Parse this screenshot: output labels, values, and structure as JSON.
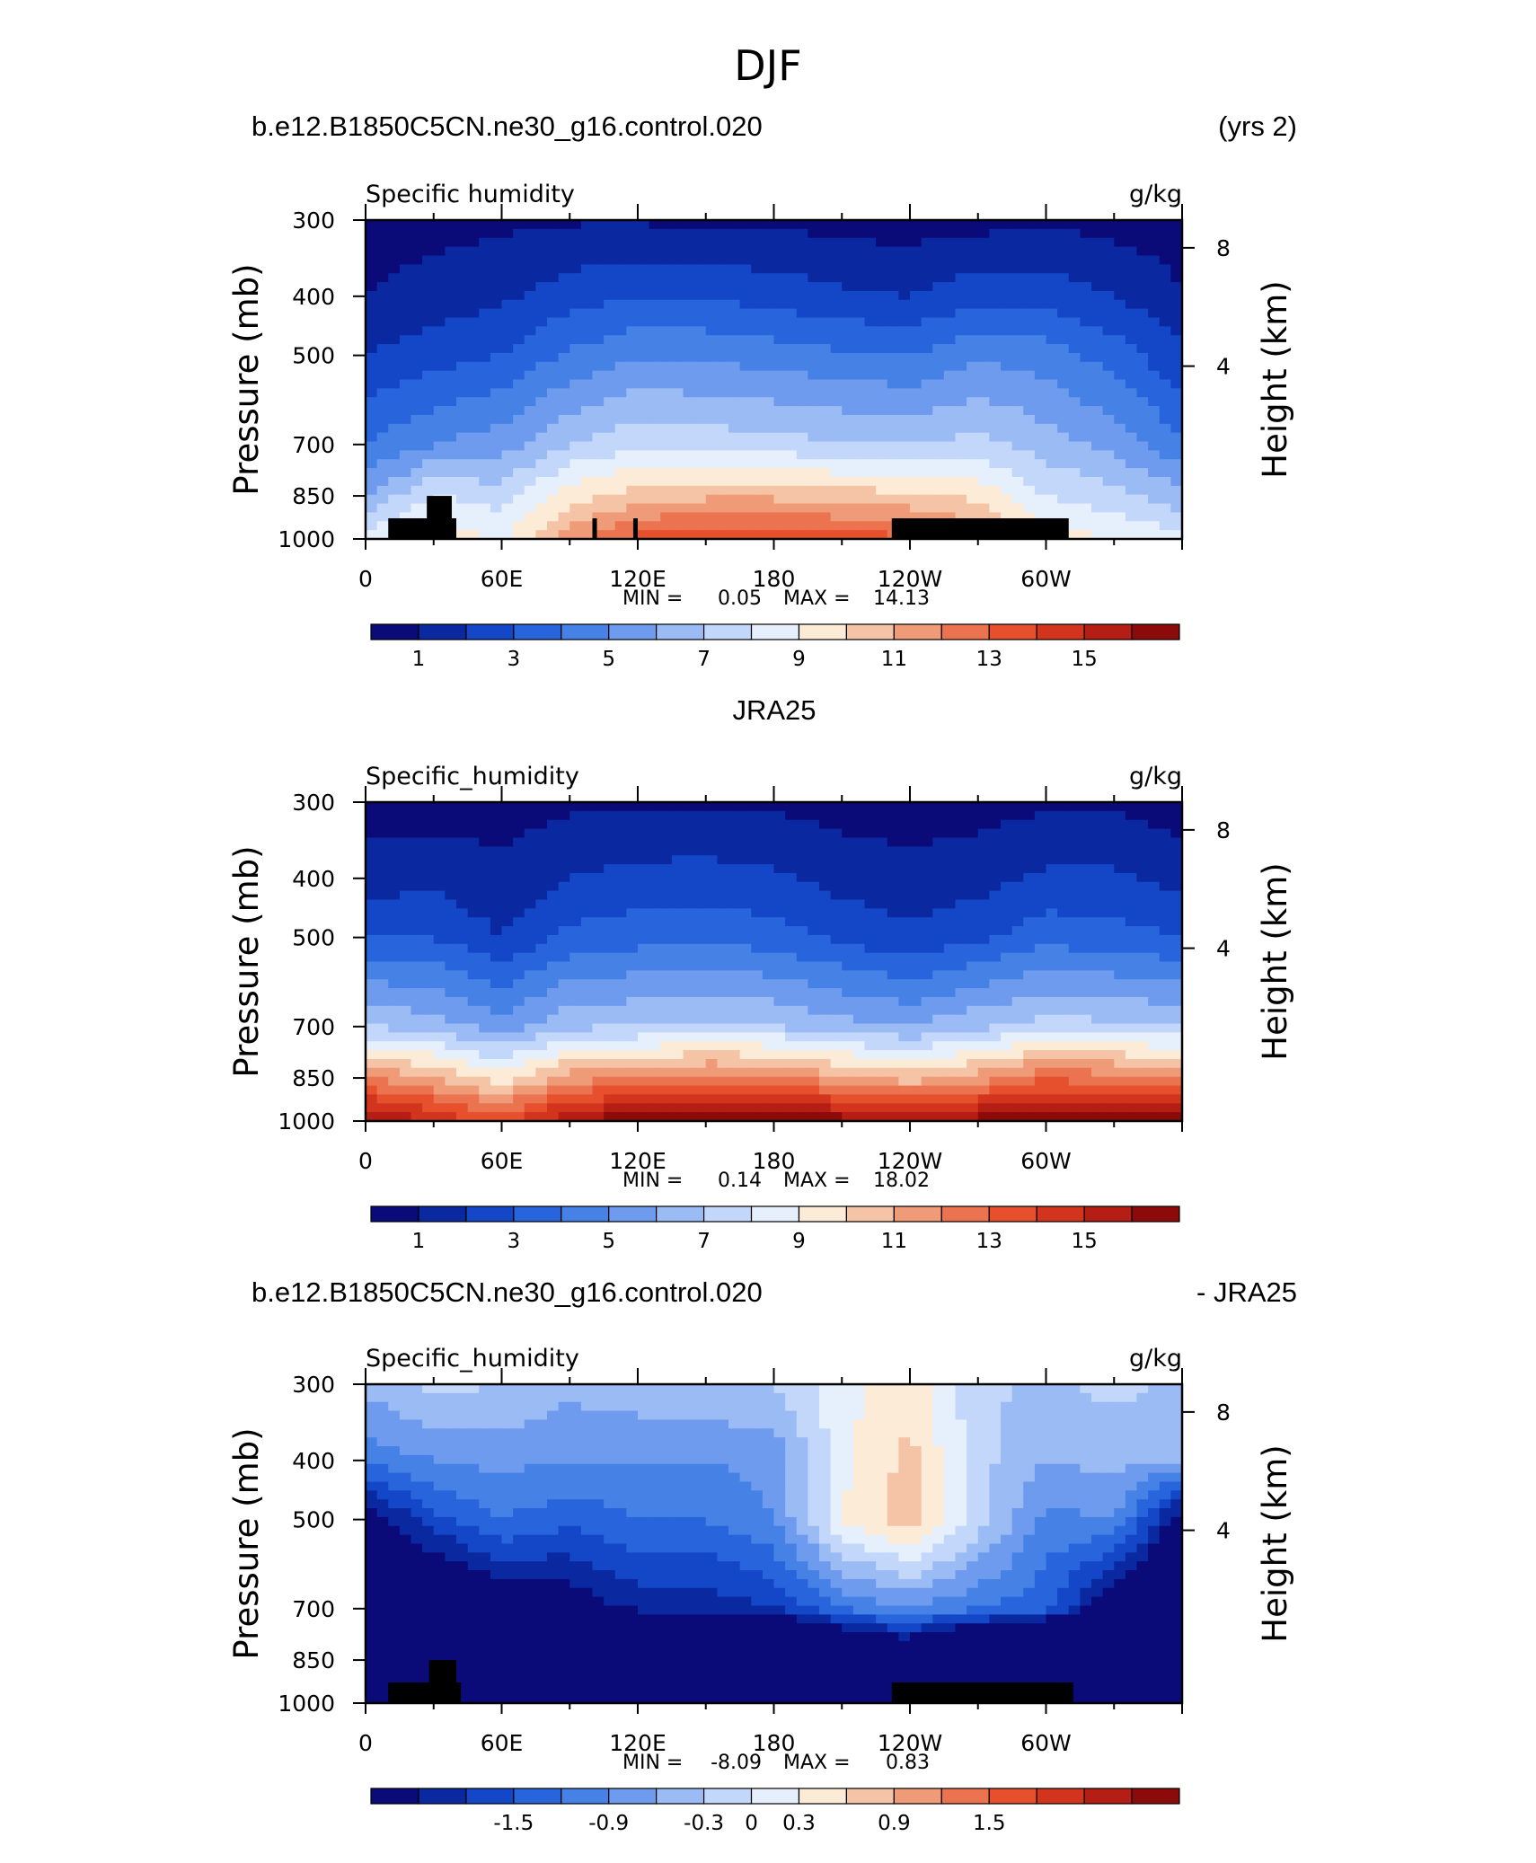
{
  "figure": {
    "title": "DJF"
  },
  "chart_data": [
    {
      "type": "heatmap",
      "header_left": "b.e12.B1850C5CN.ne30_g16.control.020",
      "header_right": "(yrs 2)",
      "subtitle_left": "Specific humidity",
      "subtitle_right": "g/kg",
      "ylabel": "Pressure (mb)",
      "ylabel_right": "Height (km)",
      "yticks": [
        "300",
        "400",
        "500",
        "700",
        "850",
        "1000"
      ],
      "yticks_right": [
        "8",
        "4"
      ],
      "xticks": [
        "0",
        "60E",
        "120E",
        "180",
        "120W",
        "60W"
      ],
      "x": [
        0,
        30,
        60,
        90,
        120,
        150,
        180,
        210,
        240,
        270,
        300,
        330,
        360
      ],
      "pressure_levels": [
        300,
        400,
        500,
        700,
        850,
        1000
      ],
      "min_label": "MIN =",
      "min_value": "0.05",
      "max_label": "MAX =",
      "max_value": "14.13",
      "contour_levels": [
        0,
        1,
        2,
        3,
        4,
        5,
        6,
        7,
        8,
        9,
        10,
        11,
        12,
        13,
        14,
        15,
        16
      ],
      "colorbar_labels": [
        "1",
        "3",
        "5",
        "7",
        "9",
        "11",
        "13",
        "15"
      ],
      "values_approx": [
        [
          0.4,
          0.6,
          0.8,
          0.9,
          0.9,
          0.8,
          0.8,
          0.6,
          0.5,
          0.6,
          0.8,
          0.6,
          0.4
        ],
        [
          1.0,
          1.5,
          1.8,
          2.5,
          3.0,
          2.9,
          2.6,
          2.2,
          2.0,
          2.7,
          2.6,
          2.0,
          1.1
        ],
        [
          2.0,
          2.5,
          3.0,
          4.2,
          4.8,
          4.8,
          4.5,
          4.2,
          4.0,
          4.8,
          4.5,
          3.5,
          2.2
        ],
        [
          4.0,
          5.0,
          5.5,
          7.0,
          7.8,
          7.6,
          7.4,
          7.1,
          6.9,
          7.4,
          6.5,
          5.6,
          4.2
        ],
        [
          6.0,
          8.0,
          7.5,
          9.5,
          10.5,
          10.8,
          10.8,
          10.5,
          10.2,
          9.8,
          8.0,
          7.4,
          6.3
        ],
        [
          8.5,
          10.0,
          8.8,
          11.5,
          13.3,
          13.8,
          13.6,
          13.5,
          13.2,
          11.5,
          9.5,
          9.0,
          8.5
        ]
      ],
      "land_mask": [
        {
          "lon": [
            10,
            40
          ],
          "p": [
            925,
            1000
          ]
        },
        {
          "lon": [
            27,
            38
          ],
          "p": [
            850,
            1000
          ]
        },
        {
          "lon": [
            100,
            102
          ],
          "p": [
            925,
            1000
          ]
        },
        {
          "lon": [
            118,
            120
          ],
          "p": [
            925,
            1000
          ]
        },
        {
          "lon": [
            232,
            310
          ],
          "p": [
            925,
            1000
          ]
        }
      ]
    },
    {
      "type": "heatmap",
      "header_center": "JRA25",
      "subtitle_left": "Specific_humidity",
      "subtitle_right": "g/kg",
      "ylabel": "Pressure (mb)",
      "ylabel_right": "Height (km)",
      "yticks": [
        "300",
        "400",
        "500",
        "700",
        "850",
        "1000"
      ],
      "yticks_right": [
        "8",
        "4"
      ],
      "xticks": [
        "0",
        "60E",
        "120E",
        "180",
        "120W",
        "60W"
      ],
      "x": [
        0,
        30,
        60,
        90,
        120,
        150,
        180,
        210,
        240,
        270,
        300,
        330,
        360
      ],
      "pressure_levels": [
        300,
        400,
        500,
        700,
        850,
        1000
      ],
      "min_label": "MIN =",
      "min_value": "0.14",
      "max_label": "MAX =",
      "max_value": "18.02",
      "contour_levels": [
        0,
        1,
        2,
        3,
        4,
        5,
        6,
        7,
        8,
        9,
        10,
        11,
        12,
        13,
        14,
        15,
        16
      ],
      "colorbar_labels": [
        "1",
        "3",
        "5",
        "7",
        "9",
        "11",
        "13",
        "15"
      ],
      "values_approx": [
        [
          0.5,
          0.5,
          0.6,
          0.8,
          0.9,
          0.9,
          0.8,
          0.6,
          0.5,
          0.6,
          0.8,
          0.8,
          0.5
        ],
        [
          1.5,
          1.7,
          1.2,
          2.0,
          2.3,
          2.4,
          2.2,
          1.6,
          1.3,
          1.6,
          2.2,
          2.2,
          1.6
        ],
        [
          3.0,
          3.0,
          2.0,
          3.3,
          3.6,
          3.8,
          3.4,
          2.8,
          2.2,
          2.8,
          3.6,
          3.4,
          3.0
        ],
        [
          7.0,
          6.5,
          5.5,
          6.8,
          7.0,
          7.3,
          7.0,
          6.4,
          6.0,
          6.8,
          7.5,
          7.2,
          7.0
        ],
        [
          12.0,
          11.0,
          9.5,
          11.5,
          12.0,
          12.5,
          12.3,
          11.3,
          10.5,
          11.5,
          12.8,
          12.5,
          12.0
        ],
        [
          16.5,
          15.0,
          13.5,
          16.0,
          17.0,
          17.5,
          17.2,
          16.5,
          16.0,
          16.5,
          17.0,
          16.8,
          16.5
        ]
      ]
    },
    {
      "type": "heatmap",
      "header_left": "b.e12.B1850C5CN.ne30_g16.control.020",
      "header_right": "- JRA25",
      "subtitle_left": "Specific_humidity",
      "subtitle_right": "g/kg",
      "ylabel": "Pressure (mb)",
      "ylabel_right": "Height (km)",
      "yticks": [
        "300",
        "400",
        "500",
        "700",
        "850",
        "1000"
      ],
      "yticks_right": [
        "8",
        "4"
      ],
      "xticks": [
        "0",
        "60E",
        "120E",
        "180",
        "120W",
        "60W"
      ],
      "x": [
        0,
        30,
        60,
        90,
        120,
        150,
        180,
        210,
        240,
        270,
        300,
        330,
        360
      ],
      "pressure_levels": [
        300,
        400,
        500,
        700,
        850,
        1000
      ],
      "min_label": "MIN =",
      "min_value": "-8.09",
      "max_label": "MAX =",
      "max_value": "0.83",
      "contour_levels": [
        -2.4,
        -2.1,
        -1.8,
        -1.5,
        -1.2,
        -0.9,
        -0.6,
        -0.3,
        0,
        0.3,
        0.6,
        0.9,
        1.2,
        1.5,
        1.8,
        2.1,
        2.4
      ],
      "colorbar_labels": [
        "-1.5",
        "-0.9",
        "-0.3",
        "0",
        "0.3",
        "0.9",
        "1.5"
      ],
      "values_approx": [
        [
          -0.5,
          -0.2,
          -0.3,
          -0.5,
          -0.4,
          -0.3,
          -0.3,
          0.2,
          0.5,
          -0.2,
          -0.4,
          -0.2,
          -0.4
        ],
        [
          -1.1,
          -0.9,
          -0.8,
          -0.9,
          -0.9,
          -0.9,
          -0.8,
          0.2,
          0.7,
          -0.2,
          -0.6,
          -0.5,
          -0.6
        ],
        [
          -2.4,
          -1.6,
          -1.2,
          -1.4,
          -1.2,
          -1.2,
          -0.9,
          0.3,
          0.8,
          -0.1,
          -1.0,
          -0.9,
          -2.4
        ],
        [
          -3.0,
          -3.0,
          -2.5,
          -2.4,
          -2.0,
          -2.0,
          -1.8,
          -1.2,
          -0.9,
          -1.2,
          -1.4,
          -2.5,
          -3.0
        ],
        [
          -5.0,
          -4.5,
          -5.0,
          -4.5,
          -4.5,
          -4.5,
          -4.5,
          -3.5,
          -3.0,
          -4.0,
          -5.0,
          -5.0,
          -5.0
        ],
        [
          -8.0,
          -6.0,
          -5.0,
          -5.5,
          -5.0,
          -4.8,
          -4.5,
          -4.0,
          -3.5,
          -4.5,
          -6.0,
          -7.0,
          -8.0
        ]
      ],
      "land_mask": [
        {
          "lon": [
            10,
            42
          ],
          "p": [
            925,
            1000
          ]
        },
        {
          "lon": [
            28,
            40
          ],
          "p": [
            850,
            1000
          ]
        },
        {
          "lon": [
            232,
            312
          ],
          "p": [
            925,
            1000
          ]
        }
      ]
    }
  ],
  "palette": [
    "#0a0a78",
    "#0a28a0",
    "#1446c8",
    "#2864dc",
    "#4682e6",
    "#6e9bee",
    "#9bbbf4",
    "#c3d7fa",
    "#e6f0fc",
    "#fcebd7",
    "#f5c3a5",
    "#f09b78",
    "#eb7350",
    "#e6502d",
    "#d2341e",
    "#b41e14",
    "#8c0a0a"
  ]
}
